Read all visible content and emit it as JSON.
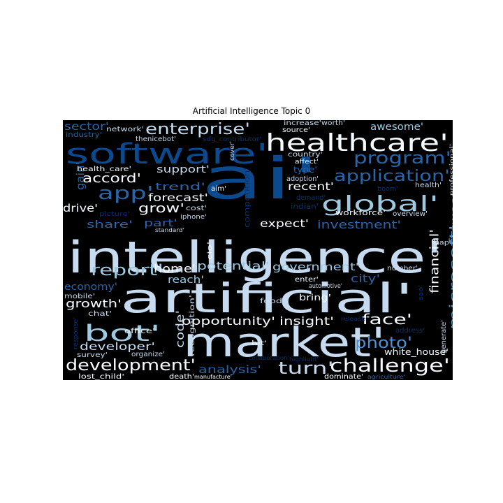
{
  "title": "Artificial Intelligence Topic 0",
  "colors": {
    "background": "#000000",
    "white": "#f5fbff",
    "light": "#c6dbef",
    "mid": "#9ecae1",
    "blue": "#4f8fcf",
    "dark": "#2b65a8",
    "navy": "#0b4a8f",
    "deep": "#08306b"
  },
  "words": [
    {
      "text": "intelligence'",
      "color": "light"
    },
    {
      "text": "artificial'",
      "color": "light"
    },
    {
      "text": "market'",
      "color": "light"
    },
    {
      "text": "ai'",
      "color": "navy"
    },
    {
      "text": "software'",
      "color": "navy"
    },
    {
      "text": "healthcare'",
      "color": "white"
    },
    {
      "text": "global'",
      "color": "mid"
    },
    {
      "text": "bot'",
      "color": "mid"
    },
    {
      "text": "development'",
      "color": "white"
    },
    {
      "text": "challenge'",
      "color": "white"
    },
    {
      "text": "application'",
      "color": "dark"
    },
    {
      "text": "program'",
      "color": "dark"
    },
    {
      "text": "enterprise'",
      "color": "light"
    },
    {
      "text": "app'",
      "color": "dark"
    },
    {
      "text": "report'",
      "color": "mid"
    },
    {
      "text": "photo'",
      "color": "blue"
    },
    {
      "text": "turn'",
      "color": "light"
    },
    {
      "text": "face'",
      "color": "white"
    },
    {
      "text": "financial'",
      "color": "white"
    },
    {
      "text": "microsoft'",
      "color": "blue"
    },
    {
      "text": "accord'",
      "color": "white"
    },
    {
      "text": "grow'",
      "color": "white"
    },
    {
      "text": "investment'",
      "color": "dark"
    },
    {
      "text": "government'",
      "color": "mid"
    },
    {
      "text": "opportunity'",
      "color": "white"
    },
    {
      "text": "insight'",
      "color": "white"
    },
    {
      "text": "analysis'",
      "color": "dark"
    },
    {
      "text": "developer'",
      "color": "light"
    },
    {
      "text": "growth'",
      "color": "white"
    },
    {
      "text": "home'",
      "color": "white"
    },
    {
      "text": "potential'",
      "color": "mid"
    },
    {
      "text": "city'",
      "color": "dark"
    },
    {
      "text": "code'",
      "color": "light"
    },
    {
      "text": "awesome'",
      "color": "mid"
    },
    {
      "text": "support'",
      "color": "light"
    },
    {
      "text": "trend'",
      "color": "dark"
    },
    {
      "text": "forecast'",
      "color": "white"
    },
    {
      "text": "drive'",
      "color": "white"
    },
    {
      "text": "share'",
      "color": "dark"
    },
    {
      "text": "part'",
      "color": "dark"
    },
    {
      "text": "expect'",
      "color": "white"
    },
    {
      "text": "recent'",
      "color": "white"
    },
    {
      "text": "tweet'",
      "color": "dark"
    },
    {
      "text": "reach'",
      "color": "mid"
    },
    {
      "text": "economy'",
      "color": "dark"
    },
    {
      "text": "sector'",
      "color": "dark"
    },
    {
      "text": "gain'",
      "color": "dark"
    },
    {
      "text": "competition'",
      "color": "deep"
    },
    {
      "text": "recognition'",
      "color": "light"
    },
    {
      "text": "bring'",
      "color": "white"
    },
    {
      "text": "food'",
      "color": "light"
    },
    {
      "text": "white_house'",
      "color": "white"
    },
    {
      "text": "generate'",
      "color": "light"
    },
    {
      "text": "network'",
      "color": "light"
    },
    {
      "text": "industry'",
      "color": "dark"
    },
    {
      "text": "thenicebot'",
      "color": "light"
    },
    {
      "text": "sdg_contributor'",
      "color": "deep"
    },
    {
      "text": "cover'",
      "color": "light"
    },
    {
      "text": "source'",
      "color": "white"
    },
    {
      "text": "increase'",
      "color": "light"
    },
    {
      "text": "worth'",
      "color": "light"
    },
    {
      "text": "country'",
      "color": "light"
    },
    {
      "text": "affect'",
      "color": "white"
    },
    {
      "text": "type'",
      "color": "dark"
    },
    {
      "text": "adoption'",
      "color": "light"
    },
    {
      "text": "demand'",
      "color": "deep"
    },
    {
      "text": "indian'",
      "color": "deep"
    },
    {
      "text": "boom'",
      "color": "deep"
    },
    {
      "text": "health'",
      "color": "light"
    },
    {
      "text": "professional'",
      "color": "light"
    },
    {
      "text": "workforce'",
      "color": "white"
    },
    {
      "text": "overview'",
      "color": "light"
    },
    {
      "text": "health_care'",
      "color": "white"
    },
    {
      "text": "aim'",
      "color": "white"
    },
    {
      "text": "cost'",
      "color": "light"
    },
    {
      "text": "iphone'",
      "color": "light"
    },
    {
      "text": "picture'",
      "color": "deep"
    },
    {
      "text": "standard'",
      "color": "light"
    },
    {
      "text": "cio'",
      "color": "white"
    },
    {
      "text": "map'",
      "color": "light"
    },
    {
      "text": "number'",
      "color": "light"
    },
    {
      "text": "enter'",
      "color": "white"
    },
    {
      "text": "automotive'",
      "color": "light"
    },
    {
      "text": "mobile'",
      "color": "light"
    },
    {
      "text": "chat'",
      "color": "light"
    },
    {
      "text": "office'",
      "color": "white"
    },
    {
      "text": "organize'",
      "color": "light"
    },
    {
      "text": "survey'",
      "color": "light"
    },
    {
      "text": "lost_child'",
      "color": "white"
    },
    {
      "text": "death'",
      "color": "white"
    },
    {
      "text": "manufacture'",
      "color": "white"
    },
    {
      "text": "collaboration'",
      "color": "deep"
    },
    {
      "text": "highlight'",
      "color": "deep"
    },
    {
      "text": "dominate'",
      "color": "white"
    },
    {
      "text": "agriculture'",
      "color": "dark"
    },
    {
      "text": "hit'",
      "color": "white"
    },
    {
      "text": "release'",
      "color": "deep"
    },
    {
      "text": "address'",
      "color": "deep"
    },
    {
      "text": "sao'",
      "color": "deep"
    },
    {
      "text": "response'",
      "color": "deep"
    }
  ]
}
